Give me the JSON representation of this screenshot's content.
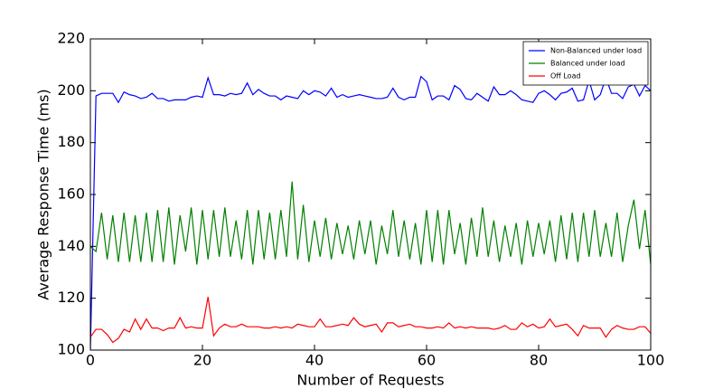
{
  "chart_data": {
    "type": "line",
    "xlabel": "Number of Requests",
    "ylabel": "Average Response Time (ms)",
    "xlim": [
      0,
      100
    ],
    "ylim": [
      100,
      220
    ],
    "xticks": [
      0,
      20,
      40,
      60,
      80,
      100
    ],
    "yticks": [
      100,
      120,
      140,
      160,
      180,
      200,
      220
    ],
    "legend": "upper right",
    "grid": false,
    "x": [
      0,
      1,
      2,
      3,
      4,
      5,
      6,
      7,
      8,
      9,
      10,
      11,
      12,
      13,
      14,
      15,
      16,
      17,
      18,
      19,
      20,
      21,
      22,
      23,
      24,
      25,
      26,
      27,
      28,
      29,
      30,
      31,
      32,
      33,
      34,
      35,
      36,
      37,
      38,
      39,
      40,
      41,
      42,
      43,
      44,
      45,
      46,
      47,
      48,
      49,
      50,
      51,
      52,
      53,
      54,
      55,
      56,
      57,
      58,
      59,
      60,
      61,
      62,
      63,
      64,
      65,
      66,
      67,
      68,
      69,
      70,
      71,
      72,
      73,
      74,
      75,
      76,
      77,
      78,
      79,
      80,
      81,
      82,
      83,
      84,
      85,
      86,
      87,
      88,
      89,
      90,
      91,
      92,
      93,
      94,
      95,
      96,
      97,
      98,
      99,
      100
    ],
    "series": [
      {
        "name": "Non-Balanced under load",
        "color": "#0000ff",
        "values": [
          100,
          198,
          199,
          199,
          199,
          195.5,
          199.5,
          198.5,
          198,
          197,
          197.5,
          199,
          197,
          197,
          196,
          196.5,
          196.5,
          196.5,
          197.5,
          198,
          197.5,
          205,
          198.5,
          198.5,
          198,
          199,
          198.5,
          199,
          203,
          198.5,
          200.5,
          199,
          198,
          198,
          196.5,
          198,
          197.5,
          197,
          200,
          198.5,
          200,
          199.5,
          198,
          201,
          197.5,
          198.5,
          197.5,
          198,
          198.5,
          198,
          197.5,
          197,
          197,
          197.5,
          201,
          197.5,
          196.5,
          197.5,
          197.5,
          205.5,
          203.5,
          196.5,
          198,
          198,
          196.5,
          202,
          200.5,
          197,
          196.5,
          199,
          197.5,
          196,
          201.5,
          198.5,
          198.5,
          200,
          198.5,
          196.5,
          196,
          195.5,
          199,
          200,
          198.5,
          196.5,
          199,
          199.5,
          201,
          196,
          196.5,
          204,
          196.5,
          198.5,
          205,
          199,
          199,
          197,
          201.5,
          202.5,
          198,
          202,
          200
        ]
      },
      {
        "name": "Balanced under load",
        "color": "#008000",
        "values": [
          140,
          138,
          153,
          135,
          152,
          134,
          153,
          134,
          152,
          134,
          153,
          134,
          154,
          134,
          155,
          133,
          152,
          138,
          155,
          133,
          154,
          135,
          154,
          136,
          155,
          136,
          150,
          135,
          154,
          133,
          154,
          135,
          153,
          135,
          154,
          136,
          165,
          135,
          156,
          134,
          150,
          136,
          151,
          135,
          149,
          137,
          148,
          135,
          150,
          137,
          150,
          133,
          148,
          137,
          154,
          136,
          150,
          135,
          149,
          133,
          154,
          134,
          154,
          133,
          154,
          137,
          149,
          133,
          151,
          136,
          155,
          136,
          150,
          134,
          148,
          136,
          149,
          133,
          150,
          136,
          149,
          137,
          150,
          134,
          152,
          135,
          153,
          134,
          153,
          136,
          154,
          136,
          149,
          136,
          153,
          134,
          148,
          158,
          139,
          154,
          133
        ]
      },
      {
        "name": "Off Load",
        "color": "#ff0000",
        "values": [
          105,
          108,
          108,
          106,
          103,
          104.5,
          108,
          107,
          112,
          108,
          112,
          108.5,
          108.5,
          107.5,
          108.5,
          108.5,
          112.5,
          108.5,
          109,
          108.5,
          108.5,
          120.5,
          105.5,
          108.5,
          110,
          109,
          109,
          110,
          109,
          109,
          109,
          108.5,
          108.5,
          109,
          108.5,
          109,
          108.5,
          110,
          109.5,
          109,
          109,
          112,
          109,
          109,
          109.5,
          110,
          109.5,
          112.5,
          110,
          109,
          109.5,
          110,
          107,
          110.5,
          110.5,
          109,
          109.5,
          110,
          109,
          109,
          108.5,
          108.5,
          109,
          108.5,
          110.5,
          108.5,
          109,
          108.5,
          109,
          108.5,
          108.5,
          108.5,
          108,
          108.5,
          109.5,
          108,
          108,
          110.5,
          109,
          110,
          108.5,
          109,
          112,
          109,
          109.5,
          110,
          108,
          105.5,
          109.5,
          108.5,
          108.5,
          108.5,
          105,
          108,
          109.5,
          108.5,
          108,
          108,
          109,
          109,
          106.5
        ]
      }
    ]
  }
}
